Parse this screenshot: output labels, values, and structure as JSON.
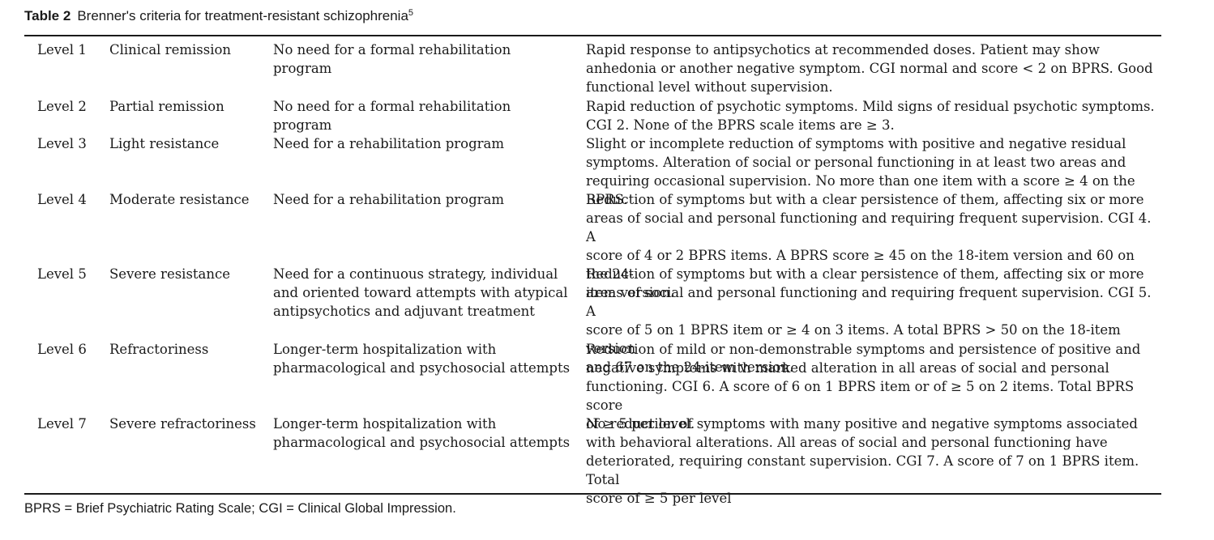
{
  "table": {
    "label": "Table 2",
    "title": "Brenner's criteria for treatment-resistant schizophrenia",
    "ref": "5",
    "rows": [
      {
        "level": "Level 1",
        "name": "Clinical remission",
        "need": "No need for a formal rehabilitation program",
        "desc": "Rapid response to antipsychotics at recommended doses. Patient may show\nanhedonia or another negative symptom. CGI normal and score < 2 on BPRS. Good\nfunctional level without supervision."
      },
      {
        "level": "Level 2",
        "name": "Partial remission",
        "need": "No need for a formal rehabilitation program",
        "desc": "Rapid reduction of psychotic symptoms. Mild signs of residual psychotic symptoms.\nCGI 2. None of the BPRS scale items are ≥ 3."
      },
      {
        "level": "Level 3",
        "name": "Light resistance",
        "need": "Need for a rehabilitation program",
        "desc": "Slight or incomplete reduction of symptoms with positive and negative residual\nsymptoms. Alteration of social or personal functioning in at least two areas and\nrequiring occasional supervision. No more than one item with a score ≥ 4 on the BPRS."
      },
      {
        "level": "Level 4",
        "name": "Moderate resistance",
        "need": "Need for a rehabilitation program",
        "desc": "Reduction of symptoms but with a clear persistence of them, affecting six or more\nareas of social and personal functioning and requiring frequent supervision. CGI 4. A\nscore of 4 or 2 BPRS items. A BPRS score ≥ 45 on the 18-item version and 60 on the 24-\nitem version."
      },
      {
        "level": "Level 5",
        "name": "Severe resistance",
        "need": "Need for a continuous strategy, individual\nand oriented toward attempts with atypical\nantipsychotics and adjuvant treatment",
        "desc": "Reduction of symptoms but with a clear persistence of them, affecting six or more\nareas of social and personal functioning and requiring frequent supervision. CGI 5. A\nscore of 5 on 1 BPRS item or ≥ 4 on 3 items. A total BPRS > 50 on the 18-item version\nand 67 on the 24-item version."
      },
      {
        "level": "Level 6",
        "name": "Refractoriness",
        "need": "Longer-term hospitalization with\npharmacological and psychosocial attempts",
        "desc": "Reduction of mild or non-demonstrable symptoms and persistence of positive and\nnegative symptoms with marked alteration in all areas of social and personal\nfunctioning. CGI 6. A score of 6 on 1 BPRS item or of ≥ 5 on 2 items. Total BPRS score\nof ≥ 5 per level."
      },
      {
        "level": "Level 7",
        "name": "Severe refractoriness",
        "need": "Longer-term hospitalization with\npharmacological and psychosocial attempts",
        "desc": "No reduction of symptoms with many positive and negative symptoms associated\nwith behavioral alterations. All areas of social and personal functioning have\ndeteriorated, requiring constant supervision. CGI 7. A score of 7 on 1 BPRS item. Total\nscore of ≥ 5 per level"
      }
    ],
    "footnote": "BPRS = Brief Psychiatric Rating Scale; CGI = Clinical Global Impression."
  }
}
